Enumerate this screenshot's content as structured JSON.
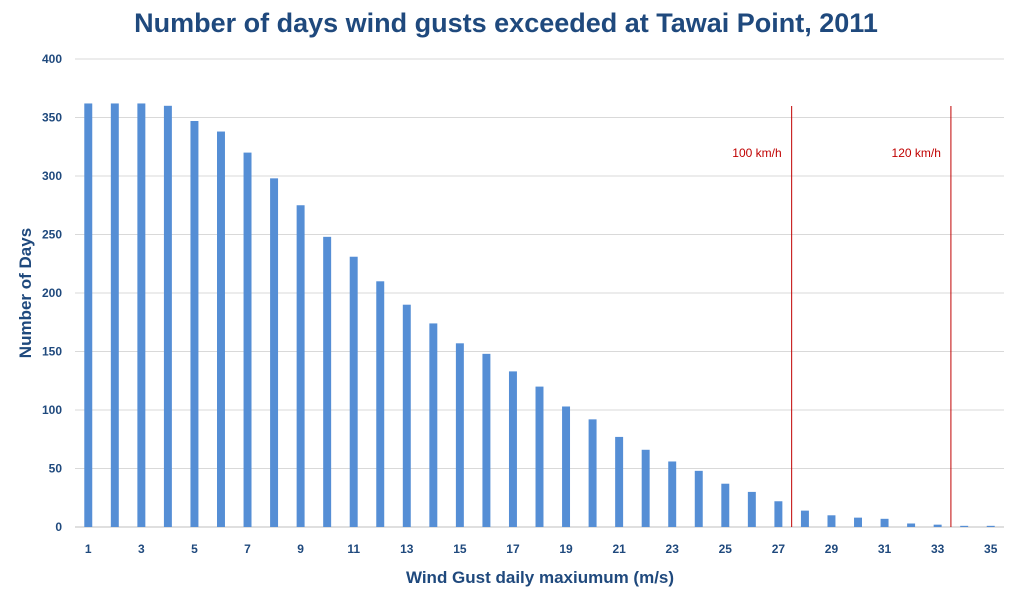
{
  "chart_data": {
    "type": "bar",
    "title": "Number of days wind gusts exceeded at Tawai Point, 2011",
    "xlabel": "Wind Gust daily maxiumum (m/s)",
    "ylabel": "Number of  Days",
    "ylim": [
      0,
      400
    ],
    "yticks": [
      "0",
      "50",
      "100",
      "150",
      "200",
      "250",
      "300",
      "350",
      "400"
    ],
    "grid": true,
    "categories": [
      1,
      2,
      3,
      4,
      5,
      6,
      7,
      8,
      9,
      10,
      11,
      12,
      13,
      14,
      15,
      16,
      17,
      18,
      19,
      20,
      21,
      22,
      23,
      24,
      25,
      26,
      27,
      28,
      29,
      30,
      31,
      32,
      33,
      34,
      35
    ],
    "xtick_labels": [
      "1",
      "3",
      "5",
      "7",
      "9",
      "11",
      "13",
      "15",
      "17",
      "19",
      "21",
      "23",
      "25",
      "27",
      "29",
      "31",
      "33",
      "35"
    ],
    "values": [
      362,
      362,
      362,
      360,
      347,
      338,
      320,
      298,
      275,
      248,
      231,
      210,
      190,
      174,
      157,
      148,
      133,
      120,
      103,
      92,
      77,
      66,
      56,
      48,
      37,
      30,
      22,
      14,
      10,
      8,
      7,
      3,
      2,
      1,
      1
    ],
    "bar_color": "#558ED5",
    "reference_lines": [
      {
        "label": "100 km/h",
        "x": 27.5,
        "color": "#C00000"
      },
      {
        "label": "120 km/h",
        "x": 33.5,
        "color": "#C00000"
      }
    ]
  }
}
